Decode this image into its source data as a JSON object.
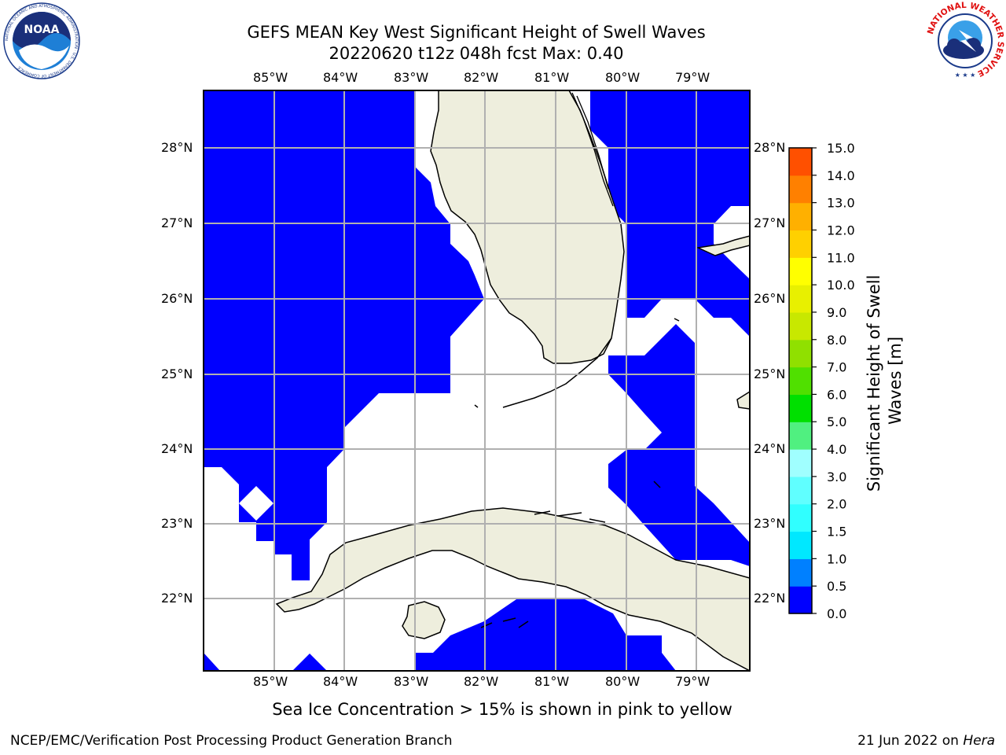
{
  "header": {
    "title_line1": "GEFS MEAN Key West Significant Height of Swell Waves",
    "title_line2": "20220620 t12z 048h fcst   Max: 0.40"
  },
  "logos": {
    "noaa_text": "NOAA",
    "noaa_ring": "NATIONAL OCEANIC AND ATMOSPHERIC ADMINISTRATION · U.S. DEPARTMENT OF COMMERCE",
    "nws_ring": "NATIONAL WEATHER SERVICE"
  },
  "map": {
    "lon_labels": [
      "85°W",
      "84°W",
      "83°W",
      "82°W",
      "81°W",
      "80°W",
      "79°W"
    ],
    "lat_labels": [
      "28°N",
      "27°N",
      "26°N",
      "25°N",
      "24°N",
      "23°N",
      "22°N"
    ],
    "ocean_color": "#0000ff",
    "land_color": "#eeeedd",
    "grid_color": "#b0b0b0"
  },
  "colorbar": {
    "label_line1": "Significant Height of Swell",
    "label_line2": "Waves [m]",
    "ticks": [
      "0.0",
      "0.5",
      "1.0",
      "1.5",
      "2.0",
      "3.0",
      "4.0",
      "5.0",
      "6.0",
      "7.0",
      "8.0",
      "9.0",
      "10.0",
      "11.0",
      "12.0",
      "13.0",
      "14.0",
      "15.0"
    ],
    "colors": [
      "#0000ff",
      "#0080ff",
      "#00e8ff",
      "#30ffff",
      "#60ffff",
      "#a0ffff",
      "#50f080",
      "#00e000",
      "#50e000",
      "#90e000",
      "#c8e800",
      "#e8f000",
      "#ffff00",
      "#ffd000",
      "#ffb000",
      "#ff8000",
      "#ff5000",
      "#ff2000",
      "#ff0000"
    ]
  },
  "caption": "Sea Ice Concentration > 15% is shown in pink to yellow",
  "footer": {
    "left": "NCEP/EMC/Verification Post Processing Product Generation Branch",
    "date": "21 Jun 2022 on ",
    "host": "Hera"
  }
}
